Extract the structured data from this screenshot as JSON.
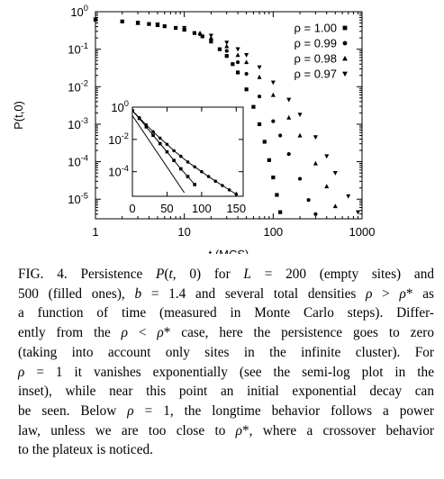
{
  "chart_data": [
    {
      "type": "scatter",
      "ylabel": "P(t,0)",
      "xlabel": "t (MCS)",
      "x_scale": "log",
      "y_scale": "log",
      "xlim": [
        1,
        1000
      ],
      "ylim": [
        3e-06,
        1
      ],
      "x_ticks": [
        {
          "v": 1,
          "label": "1"
        },
        {
          "v": 10,
          "label": "10"
        },
        {
          "v": 100,
          "label": "100"
        },
        {
          "v": 1000,
          "label": "1000"
        }
      ],
      "y_ticks": [
        {
          "v": 1,
          "base": "10",
          "exp": "0"
        },
        {
          "v": 0.1,
          "base": "10",
          "exp": "-1"
        },
        {
          "v": 0.01,
          "base": "10",
          "exp": "-2"
        },
        {
          "v": 0.001,
          "base": "10",
          "exp": "-3"
        },
        {
          "v": 0.0001,
          "base": "10",
          "exp": "-4"
        },
        {
          "v": 1e-05,
          "base": "10",
          "exp": "-5"
        }
      ],
      "legend_position": "top-right",
      "series": [
        {
          "name": "ρ = 1.00",
          "marker": "square",
          "points": [
            [
              1,
              0.62
            ],
            [
              2,
              0.55
            ],
            [
              3,
              0.5
            ],
            [
              4,
              0.47
            ],
            [
              5,
              0.44
            ],
            [
              6,
              0.41
            ],
            [
              8,
              0.37
            ],
            [
              10,
              0.33
            ],
            [
              13,
              0.27
            ],
            [
              16,
              0.22
            ],
            [
              20,
              0.16
            ],
            [
              25,
              0.1
            ],
            [
              30,
              0.066
            ],
            [
              35,
              0.04
            ],
            [
              40,
              0.024
            ],
            [
              50,
              0.0085
            ],
            [
              60,
              0.0029
            ],
            [
              70,
              0.001
            ],
            [
              80,
              0.00034
            ],
            [
              90,
              0.00011
            ],
            [
              100,
              3.8e-05
            ],
            [
              110,
              1.3e-05
            ],
            [
              120,
              4.5e-06
            ]
          ]
        },
        {
          "name": "ρ = 0.99",
          "marker": "circle",
          "points": [
            [
              1,
              0.62
            ],
            [
              2,
              0.55
            ],
            [
              3,
              0.5
            ],
            [
              5,
              0.44
            ],
            [
              8,
              0.37
            ],
            [
              10,
              0.33
            ],
            [
              15,
              0.25
            ],
            [
              20,
              0.18
            ],
            [
              30,
              0.09
            ],
            [
              40,
              0.045
            ],
            [
              50,
              0.022
            ],
            [
              70,
              0.0055
            ],
            [
              100,
              0.0012
            ],
            [
              120,
              0.0005
            ],
            [
              150,
              0.00016
            ],
            [
              200,
              3.5e-05
            ],
            [
              250,
              9.5e-06
            ],
            [
              300,
              4e-06
            ]
          ]
        },
        {
          "name": "ρ = 0.98",
          "marker": "triangle-up",
          "points": [
            [
              1,
              0.62
            ],
            [
              3,
              0.5
            ],
            [
              5,
              0.45
            ],
            [
              10,
              0.35
            ],
            [
              15,
              0.27
            ],
            [
              20,
              0.2
            ],
            [
              30,
              0.12
            ],
            [
              40,
              0.07
            ],
            [
              50,
              0.045
            ],
            [
              70,
              0.018
            ],
            [
              100,
              0.006
            ],
            [
              150,
              0.0015
            ],
            [
              200,
              0.0005
            ],
            [
              300,
              9e-05
            ],
            [
              400,
              2.2e-05
            ],
            [
              500,
              6.5e-06
            ]
          ]
        },
        {
          "name": "ρ = 0.97",
          "marker": "triangle-down",
          "points": [
            [
              1,
              0.62
            ],
            [
              3,
              0.51
            ],
            [
              5,
              0.46
            ],
            [
              10,
              0.37
            ],
            [
              20,
              0.23
            ],
            [
              30,
              0.15
            ],
            [
              40,
              0.1
            ],
            [
              50,
              0.07
            ],
            [
              70,
              0.033
            ],
            [
              100,
              0.013
            ],
            [
              150,
              0.0045
            ],
            [
              200,
              0.0018
            ],
            [
              300,
              0.00045
            ],
            [
              400,
              0.00014
            ],
            [
              500,
              5e-05
            ],
            [
              700,
              1.2e-05
            ],
            [
              900,
              4.5e-06
            ]
          ]
        }
      ]
    },
    {
      "type": "line",
      "x_scale": "linear",
      "y_scale": "log",
      "xlim": [
        0,
        160
      ],
      "ylim": [
        3e-06,
        1
      ],
      "x_ticks": [
        {
          "v": 0,
          "label": "0"
        },
        {
          "v": 50,
          "label": "50"
        },
        {
          "v": 100,
          "label": "100"
        },
        {
          "v": 150,
          "label": "150"
        }
      ],
      "y_ticks": [
        {
          "v": 1,
          "base": "10",
          "exp": "0"
        },
        {
          "v": 0.01,
          "base": "10",
          "exp": "-2"
        },
        {
          "v": 0.0001,
          "base": "10",
          "exp": "-4"
        }
      ],
      "series": [
        {
          "marker": "square",
          "points": [
            [
              0,
              0.6
            ],
            [
              10,
              0.2
            ],
            [
              20,
              0.06
            ],
            [
              30,
              0.018
            ],
            [
              40,
              0.0055
            ],
            [
              50,
              0.0017
            ],
            [
              60,
              0.0005
            ],
            [
              70,
              0.00015
            ],
            [
              80,
              5e-05
            ],
            [
              90,
              1.6e-05
            ]
          ]
        },
        {
          "marker": "circle",
          "points": [
            [
              0,
              0.6
            ],
            [
              10,
              0.22
            ],
            [
              20,
              0.08
            ],
            [
              30,
              0.03
            ],
            [
              40,
              0.012
            ],
            [
              50,
              0.005
            ],
            [
              60,
              0.002
            ],
            [
              70,
              0.0009
            ],
            [
              80,
              0.0004
            ],
            [
              90,
              0.0002
            ],
            [
              100,
              0.0001
            ],
            [
              110,
              5e-05
            ],
            [
              120,
              2.6e-05
            ],
            [
              130,
              1.4e-05
            ],
            [
              140,
              7.5e-06
            ],
            [
              150,
              4e-06
            ]
          ]
        },
        {
          "marker": "none",
          "points": [
            [
              0,
              0.3
            ],
            [
              75,
              5e-06
            ]
          ]
        }
      ]
    }
  ],
  "caption": {
    "lines": [
      [
        "FIG. 4. Persistence ",
        {
          "i": "P"
        },
        "(",
        {
          "i": "t"
        },
        ", 0) for ",
        {
          "i": "L"
        },
        " = 200 (empty sites) and"
      ],
      [
        "500 (filled ones), ",
        {
          "i": "b"
        },
        " = 1.4 and several total densities ",
        {
          "i": "ρ"
        },
        " > ",
        {
          "i": "ρ"
        },
        "* as"
      ],
      [
        "a function of time (measured in Monte Carlo steps). Differ-"
      ],
      [
        "ently from the ",
        {
          "i": "ρ"
        },
        " < ",
        {
          "i": "ρ"
        },
        "* case, here the persistence goes to zero"
      ],
      [
        "(taking into account only sites in the infinite cluster). For"
      ],
      [
        {
          "i": "ρ"
        },
        " = 1 it vanishes exponentially (see the semi-log plot in the"
      ],
      [
        "inset), while near this point an initial exponential decay can"
      ],
      [
        "be seen. Below ",
        {
          "i": "ρ"
        },
        " = 1, the longtime behavior follows a power"
      ],
      [
        "law, unless we are too close to ",
        {
          "i": "ρ"
        },
        "*, where a crossover behavior"
      ],
      [
        "to the plateux is noticed."
      ]
    ]
  }
}
